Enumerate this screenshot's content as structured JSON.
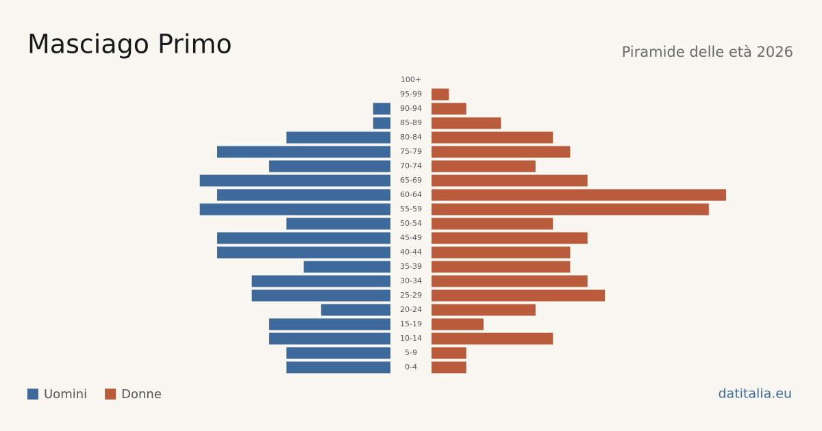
{
  "chart_data": {
    "type": "pyramid",
    "title": "Masciago Primo",
    "subtitle": "Piramide delle età 2026",
    "categories": [
      "100+",
      "95-99",
      "90-94",
      "85-89",
      "80-84",
      "75-79",
      "70-74",
      "65-69",
      "60-64",
      "55-59",
      "50-54",
      "45-49",
      "40-44",
      "35-39",
      "30-34",
      "25-29",
      "20-24",
      "15-19",
      "10-14",
      "5-9",
      "0-4"
    ],
    "series": [
      {
        "name": "Uomini",
        "color": "#3d6a9b",
        "values": [
          0,
          0,
          1,
          1,
          6,
          10,
          7,
          11,
          10,
          11,
          6,
          10,
          10,
          5,
          8,
          8,
          4,
          7,
          7,
          6,
          6
        ]
      },
      {
        "name": "Donne",
        "color": "#b85c3c",
        "values": [
          0,
          1,
          2,
          4,
          7,
          8,
          6,
          9,
          17,
          16,
          7,
          9,
          8,
          8,
          9,
          10,
          6,
          3,
          7,
          2,
          2
        ]
      }
    ]
  },
  "footer": {
    "site": "datitalia.eu"
  }
}
